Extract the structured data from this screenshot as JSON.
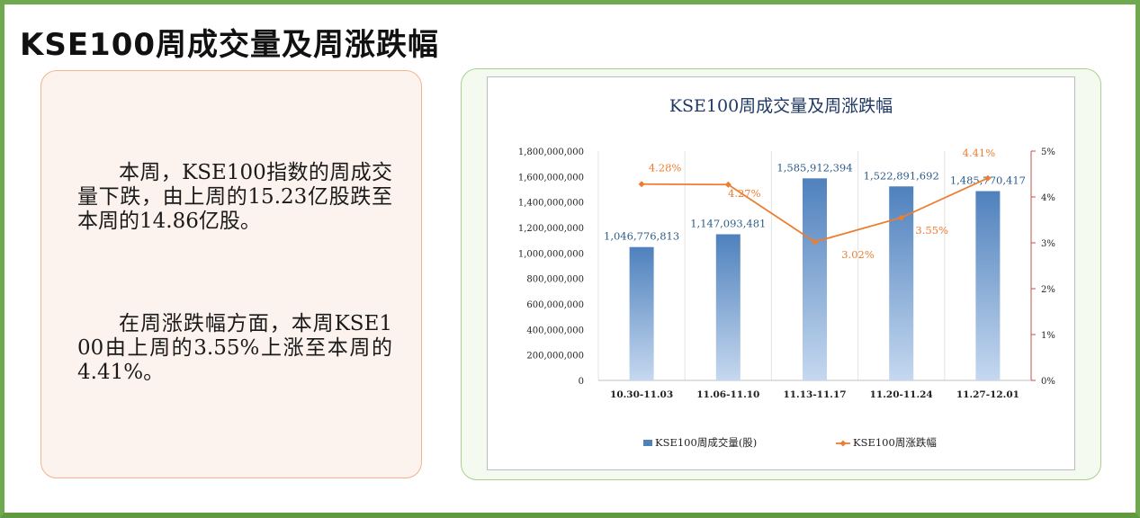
{
  "page": {
    "title": "KSE100周成交量及周涨跌幅"
  },
  "text_panel": {
    "paragraph1": "本周，KSE100指数的周成交量下跌，由上周的15.23亿股跌至本周的14.86亿股。",
    "paragraph2": "在周涨跌幅方面，本周KSE100由上周的3.55%上涨至本周的4.41%。"
  },
  "colors": {
    "bar": "#4f81bd",
    "line": "#ed7d31",
    "right_axis": "#c0504d",
    "frame": "#6fa84f"
  },
  "chart_data": {
    "type": "bar",
    "title": "KSE100周成交量及周涨跌幅",
    "categories": [
      "10.30-11.03",
      "11.06-11.10",
      "11.13-11.17",
      "11.20-11.24",
      "11.27-12.01"
    ],
    "y_ticks": [
      "1,800,000,000",
      "1,600,000,000",
      "1,400,000,000",
      "1,200,000,000",
      "1,000,000,000",
      "800,000,000",
      "600,000,000",
      "400,000,000",
      "200,000,000",
      "0"
    ],
    "y2_ticks": [
      "5%",
      "4%",
      "3%",
      "2%",
      "1%",
      "0%"
    ],
    "ylim": [
      0,
      1800000000
    ],
    "y2lim": [
      0,
      5
    ],
    "series": [
      {
        "name": "KSE100周成交量(股)",
        "type": "bar",
        "axis": "left",
        "values": [
          1046776813,
          1147093481,
          1585912394,
          1522891692,
          1485770417
        ],
        "labels": [
          "1,046,776,813",
          "1,147,093,481",
          "1,585,912,394",
          "1,522,891,692",
          "1,485,770,417"
        ]
      },
      {
        "name": "KSE100周涨跌幅",
        "type": "line",
        "axis": "right",
        "values": [
          4.28,
          4.27,
          3.02,
          3.55,
          4.41
        ],
        "labels": [
          "4.28%",
          "4.27%",
          "3.02%",
          "3.55%",
          "4.41%"
        ]
      }
    ],
    "legend_position": "bottom",
    "grid": "vertical"
  }
}
